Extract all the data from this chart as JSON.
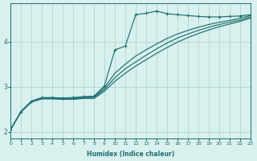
{
  "xlabel": "Humidex (Indice chaleur)",
  "bg_color": "#d8f0ee",
  "grid_color": "#b0d8d4",
  "line_color": "#1e7070",
  "xlim": [
    0,
    23
  ],
  "ylim": [
    1.85,
    4.85
  ],
  "yticks": [
    2,
    3,
    4
  ],
  "xticks": [
    0,
    1,
    2,
    3,
    4,
    5,
    6,
    7,
    8,
    9,
    10,
    11,
    12,
    13,
    14,
    15,
    16,
    17,
    18,
    19,
    20,
    21,
    22,
    23
  ],
  "s1_marked": [
    [
      0,
      2.05
    ],
    [
      1,
      2.45
    ],
    [
      2,
      2.68
    ],
    [
      3,
      2.76
    ],
    [
      4,
      2.76
    ],
    [
      5,
      2.75
    ],
    [
      6,
      2.76
    ],
    [
      7,
      2.78
    ],
    [
      8,
      2.79
    ],
    [
      9,
      3.02
    ],
    [
      10,
      3.82
    ],
    [
      11,
      3.9
    ],
    [
      12,
      4.6
    ],
    [
      13,
      4.63
    ],
    [
      14,
      4.68
    ],
    [
      15,
      4.62
    ],
    [
      16,
      4.6
    ],
    [
      17,
      4.58
    ],
    [
      18,
      4.56
    ],
    [
      19,
      4.55
    ],
    [
      20,
      4.55
    ],
    [
      21,
      4.56
    ],
    [
      22,
      4.57
    ],
    [
      23,
      4.6
    ]
  ],
  "s2": [
    [
      0,
      2.05
    ],
    [
      1,
      2.45
    ],
    [
      2,
      2.68
    ],
    [
      3,
      2.75
    ],
    [
      4,
      2.75
    ],
    [
      5,
      2.74
    ],
    [
      6,
      2.75
    ],
    [
      7,
      2.77
    ],
    [
      8,
      2.78
    ],
    [
      9,
      2.98
    ],
    [
      10,
      3.3
    ],
    [
      11,
      3.5
    ],
    [
      12,
      3.68
    ],
    [
      13,
      3.82
    ],
    [
      14,
      3.95
    ],
    [
      15,
      4.07
    ],
    [
      16,
      4.17
    ],
    [
      17,
      4.25
    ],
    [
      18,
      4.32
    ],
    [
      19,
      4.38
    ],
    [
      20,
      4.43
    ],
    [
      21,
      4.47
    ],
    [
      22,
      4.52
    ],
    [
      23,
      4.58
    ]
  ],
  "s3": [
    [
      0,
      2.05
    ],
    [
      1,
      2.45
    ],
    [
      2,
      2.67
    ],
    [
      3,
      2.74
    ],
    [
      4,
      2.74
    ],
    [
      5,
      2.73
    ],
    [
      6,
      2.73
    ],
    [
      7,
      2.76
    ],
    [
      8,
      2.76
    ],
    [
      9,
      2.94
    ],
    [
      10,
      3.2
    ],
    [
      11,
      3.4
    ],
    [
      12,
      3.55
    ],
    [
      13,
      3.7
    ],
    [
      14,
      3.84
    ],
    [
      15,
      3.97
    ],
    [
      16,
      4.08
    ],
    [
      17,
      4.17
    ],
    [
      18,
      4.25
    ],
    [
      19,
      4.32
    ],
    [
      20,
      4.38
    ],
    [
      21,
      4.43
    ],
    [
      22,
      4.48
    ],
    [
      23,
      4.55
    ]
  ],
  "s4": [
    [
      0,
      2.05
    ],
    [
      1,
      2.44
    ],
    [
      2,
      2.66
    ],
    [
      3,
      2.73
    ],
    [
      4,
      2.73
    ],
    [
      5,
      2.72
    ],
    [
      6,
      2.72
    ],
    [
      7,
      2.74
    ],
    [
      8,
      2.74
    ],
    [
      9,
      2.9
    ],
    [
      10,
      3.12
    ],
    [
      11,
      3.3
    ],
    [
      12,
      3.46
    ],
    [
      13,
      3.6
    ],
    [
      14,
      3.74
    ],
    [
      15,
      3.87
    ],
    [
      16,
      3.99
    ],
    [
      17,
      4.09
    ],
    [
      18,
      4.18
    ],
    [
      19,
      4.26
    ],
    [
      20,
      4.33
    ],
    [
      21,
      4.39
    ],
    [
      22,
      4.45
    ],
    [
      23,
      4.52
    ]
  ]
}
